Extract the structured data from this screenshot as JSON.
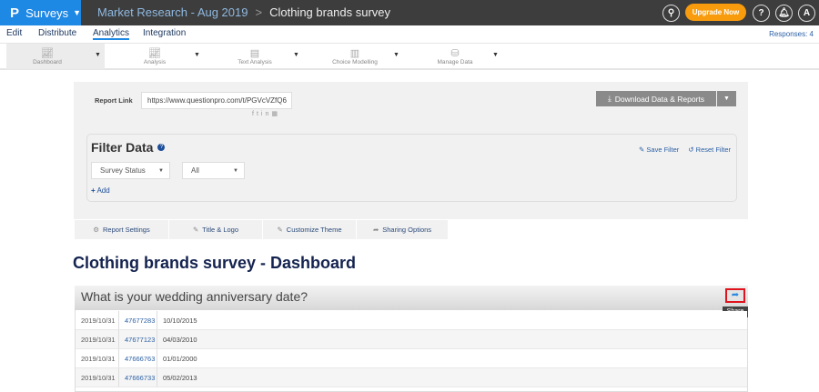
{
  "topbar": {
    "logo": "P",
    "product": "Surveys",
    "breadcrumb_folder": "Market Research - Aug 2019",
    "breadcrumb_separator": ">",
    "survey_title": "Clothing brands survey",
    "upgrade": "Upgrade Now",
    "help": "?",
    "avatar": "A"
  },
  "nav": {
    "items": [
      "Edit",
      "Distribute",
      "Analytics",
      "Integration"
    ],
    "active": "Analytics",
    "responses": "Responses: 4"
  },
  "toolbar": {
    "items": [
      "Dashboard",
      "Analysis",
      "Text Analysis",
      "Choice Modelling",
      "Manage Data"
    ],
    "active": "Dashboard"
  },
  "report": {
    "link_label": "Report Link",
    "link_value": "https://www.questionpro.com/t/PGVcVZfQ6",
    "download": "Download Data & Reports"
  },
  "filter": {
    "title": "Filter Data",
    "save": "Save Filter",
    "reset": "Reset Filter",
    "field": "Survey Status",
    "value": "All",
    "add": "Add"
  },
  "tabs": [
    "Report Settings",
    "Title & Logo",
    "Customize Theme",
    "Sharing Options"
  ],
  "dashboard_title": "Clothing brands survey - Dashboard",
  "question": {
    "title": "What is your wedding anniversary date?",
    "share_tooltip": "Share",
    "rows": [
      [
        "2019/10/31",
        "47677283",
        "10/10/2015"
      ],
      [
        "2019/10/31",
        "47677123",
        "04/03/2010"
      ],
      [
        "2019/10/31",
        "47666763",
        "01/01/2000"
      ],
      [
        "2019/10/31",
        "47666733",
        "05/02/2013"
      ]
    ]
  },
  "colors": {
    "brand": "#1e88e5",
    "topbar": "#3d3d3d",
    "upgrade": "#f89c0e",
    "highlight": "#e0141e"
  }
}
